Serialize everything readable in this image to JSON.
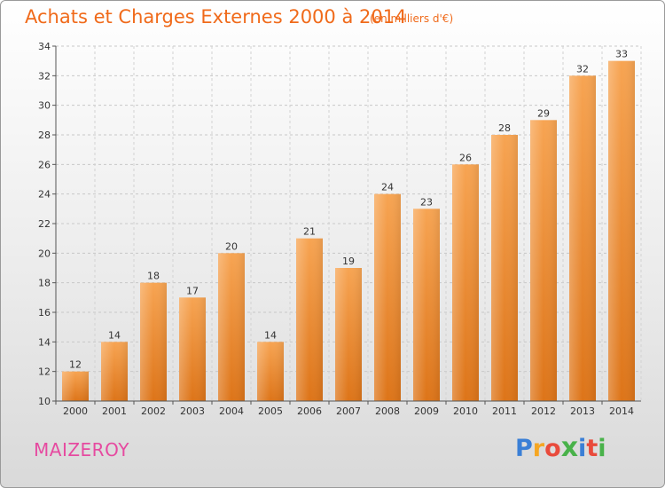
{
  "header": {
    "title": "Achats et Charges Externes 2000 à 2014",
    "subtitle": "(en milliers d'€)"
  },
  "footer": {
    "location": "MAIZEROY",
    "logo_letters": [
      "P",
      "r",
      "o",
      "x",
      "i",
      "t",
      "i"
    ],
    "logo_colors": [
      "#3a7fd6",
      "#f5a623",
      "#e94b3c",
      "#49b24a",
      "#3a7fd6",
      "#e94b3c",
      "#49b24a"
    ]
  },
  "chart_data": {
    "type": "bar",
    "categories": [
      "2000",
      "2001",
      "2002",
      "2003",
      "2004",
      "2005",
      "2006",
      "2007",
      "2008",
      "2009",
      "2010",
      "2011",
      "2012",
      "2013",
      "2014"
    ],
    "values": [
      12,
      14,
      18,
      17,
      20,
      14,
      21,
      19,
      24,
      23,
      26,
      28,
      29,
      32,
      33
    ],
    "ylim": [
      10,
      34
    ],
    "yticks": [
      10,
      12,
      14,
      16,
      18,
      20,
      22,
      24,
      26,
      28,
      30,
      32,
      34
    ],
    "grid": true,
    "bar_color": "#f08a2a"
  }
}
